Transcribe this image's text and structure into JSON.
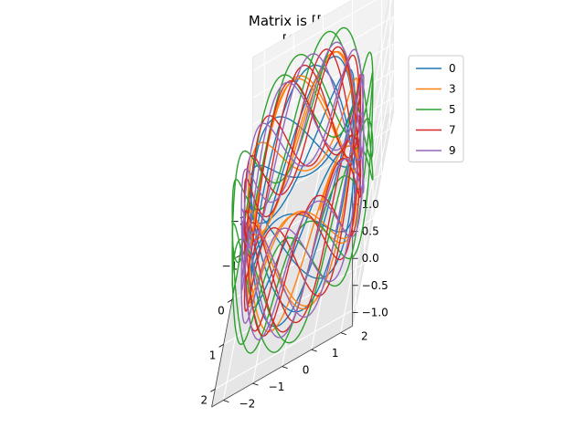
{
  "chart_data": {
    "type": "line",
    "projection": "3d",
    "title_lines": [
      "Matrix is [[1 0]",
      " [0 1]]"
    ],
    "xlim": [
      -2.4,
      2.4
    ],
    "ylim": [
      -2.4,
      2.4
    ],
    "zlim": [
      -1.25,
      1.25
    ],
    "x_ticks": [
      -2,
      -1,
      0,
      1,
      2
    ],
    "x_tick_labels": [
      "−2",
      "−1",
      "0",
      "1",
      "2"
    ],
    "y_ticks": [
      -2,
      -1,
      0,
      1,
      2
    ],
    "y_tick_labels": [
      "−2",
      "−1",
      "0",
      "1",
      "2"
    ],
    "z_ticks": [
      -1.0,
      -0.5,
      0.0,
      0.5,
      1.0
    ],
    "z_tick_labels": [
      "−1.0",
      "−0.5",
      "0.0",
      "0.5",
      "1.0"
    ],
    "grid": true,
    "legend_position": "upper-right",
    "series": [
      {
        "name": "0",
        "color": "#1f77b4",
        "radius": 1.7,
        "freq": 7,
        "phase": 0.0,
        "turns": 5
      },
      {
        "name": "3",
        "color": "#ff7f0e",
        "radius": 1.8,
        "freq": 9,
        "phase": 0.6,
        "turns": 5
      },
      {
        "name": "5",
        "color": "#2ca02c",
        "radius": 2.3,
        "freq": 11,
        "phase": 1.2,
        "turns": 4
      },
      {
        "name": "7",
        "color": "#d62728",
        "radius": 1.9,
        "freq": 13,
        "phase": 2.0,
        "turns": 5
      },
      {
        "name": "9",
        "color": "#9467bd",
        "radius": 2.0,
        "freq": 15,
        "phase": 2.7,
        "turns": 6
      }
    ]
  }
}
